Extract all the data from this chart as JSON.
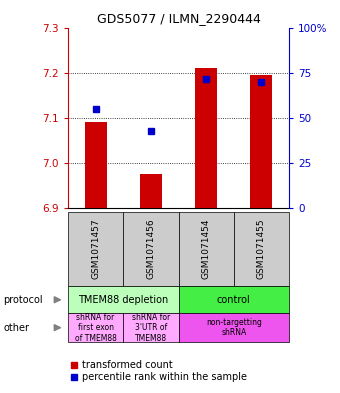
{
  "title": "GDS5077 / ILMN_2290444",
  "samples": [
    "GSM1071457",
    "GSM1071456",
    "GSM1071454",
    "GSM1071455"
  ],
  "bar_bottoms": [
    6.9,
    6.9,
    6.9,
    6.9
  ],
  "bar_tops": [
    7.09,
    6.975,
    7.21,
    7.195
  ],
  "blue_dots": [
    7.12,
    7.07,
    7.185,
    7.18
  ],
  "ylim": [
    6.9,
    7.3
  ],
  "yticks_left": [
    6.9,
    7.0,
    7.1,
    7.2,
    7.3
  ],
  "yticks_right": [
    0,
    25,
    50,
    75,
    100
  ],
  "bar_color": "#cc0000",
  "dot_color": "#0000cc",
  "protocol_labels": [
    "TMEM88 depletion",
    "control"
  ],
  "protocol_colors": [
    "#bbffbb",
    "#44ee44"
  ],
  "other_labels": [
    "shRNA for\nfirst exon\nof TMEM88",
    "shRNA for\n3'UTR of\nTMEM88",
    "non-targetting\nshRNA"
  ],
  "other_colors": [
    "#ffaaff",
    "#ffaaff",
    "#ee55ee"
  ],
  "sample_bg_color": "#cccccc",
  "bar_width": 0.4
}
